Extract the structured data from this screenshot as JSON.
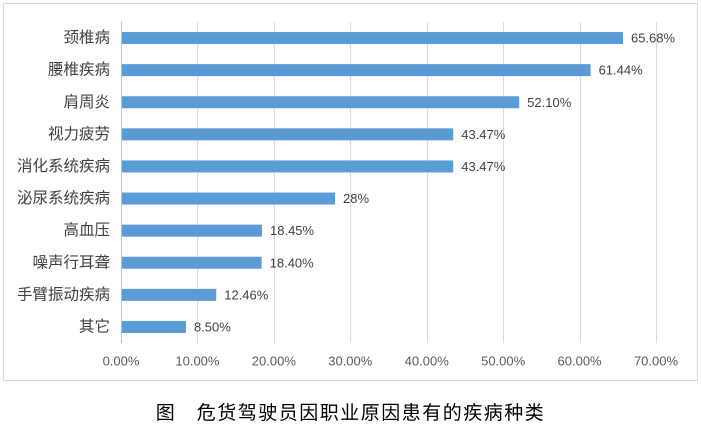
{
  "chart_data": {
    "type": "bar",
    "orientation": "horizontal",
    "categories": [
      "颈椎病",
      "腰椎疾病",
      "肩周炎",
      "视力疲劳",
      "消化系统疾病",
      "泌尿系统疾病",
      "高血压",
      "噪声行耳聋",
      "手臂振动疾病",
      "其它"
    ],
    "values": [
      65.68,
      61.44,
      52.1,
      43.47,
      43.47,
      28,
      18.45,
      18.4,
      12.46,
      8.5
    ],
    "data_labels": [
      "65.68%",
      "61.44%",
      "52.10%",
      "43.47%",
      "43.47%",
      "28%",
      "18.45%",
      "18.40%",
      "12.46%",
      "8.50%"
    ],
    "x_ticks": [
      "0.00%",
      "10.00%",
      "20.00%",
      "30.00%",
      "40.00%",
      "50.00%",
      "60.00%",
      "70.00%"
    ],
    "xlim": [
      0,
      70
    ],
    "grid": true,
    "legend": "none",
    "colors": {
      "bar": "#5b9bd5",
      "gridline": "#d9d9d9",
      "axis": "#bfbfbf"
    }
  },
  "caption": {
    "label": "图",
    "text": "危货驾驶员因职业原因患有的疾病种类"
  }
}
